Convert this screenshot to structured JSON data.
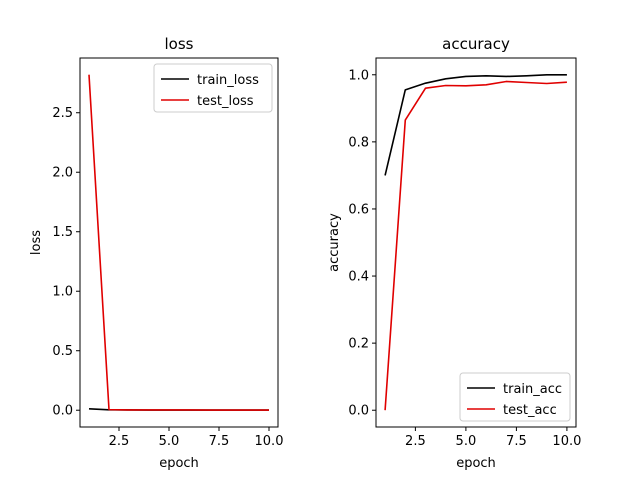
{
  "chart_data": [
    {
      "type": "line",
      "title": "loss",
      "xlabel": "epoch",
      "ylabel": "loss",
      "xlim": [
        0.55,
        10.45
      ],
      "ylim": [
        -0.141,
        2.96
      ],
      "xticks": [
        2.5,
        5.0,
        7.5,
        10.0
      ],
      "yticks": [
        0.0,
        0.5,
        1.0,
        1.5,
        2.0,
        2.5
      ],
      "x": [
        1,
        2,
        3,
        4,
        5,
        6,
        7,
        8,
        9,
        10
      ],
      "series": [
        {
          "name": "train_loss",
          "color": "#000000",
          "values": [
            0.012,
            0.003,
            0.002,
            0.001,
            0.001,
            0.001,
            0.001,
            0.001,
            0.001,
            0.001
          ]
        },
        {
          "name": "test_loss",
          "color": "#e00000",
          "values": [
            2.82,
            0.005,
            0.002,
            0.002,
            0.002,
            0.002,
            0.001,
            0.001,
            0.001,
            0.001
          ]
        }
      ],
      "legend": "top-right",
      "grid": false
    },
    {
      "type": "line",
      "title": "accuracy",
      "xlabel": "epoch",
      "ylabel": "accuracy",
      "xlim": [
        0.55,
        10.45
      ],
      "ylim": [
        -0.05,
        1.05
      ],
      "xticks": [
        2.5,
        5.0,
        7.5,
        10.0
      ],
      "yticks": [
        0.0,
        0.2,
        0.4,
        0.6,
        0.8,
        1.0
      ],
      "x": [
        1,
        2,
        3,
        4,
        5,
        6,
        7,
        8,
        9,
        10
      ],
      "series": [
        {
          "name": "train_acc",
          "color": "#000000",
          "values": [
            0.7,
            0.955,
            0.975,
            0.988,
            0.995,
            0.997,
            0.995,
            0.997,
            1.0,
            1.0
          ]
        },
        {
          "name": "test_acc",
          "color": "#e00000",
          "values": [
            0.0,
            0.865,
            0.96,
            0.968,
            0.967,
            0.97,
            0.98,
            0.977,
            0.974,
            0.978
          ]
        }
      ],
      "legend": "bottom-right",
      "grid": false
    }
  ]
}
